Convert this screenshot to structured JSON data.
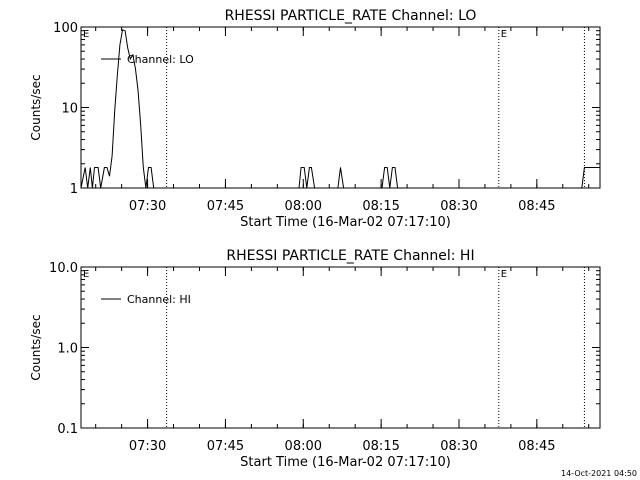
{
  "chart_data": [
    {
      "type": "line",
      "title": "RHESSI PARTICLE_RATE Channel: LO",
      "xlabel": "Start Time (16-Mar-02 07:17:10)",
      "ylabel": "Counts/sec",
      "yscale": "log",
      "ylim": [
        1,
        100
      ],
      "y_tick_labels": [
        "1",
        "10",
        "100"
      ],
      "x_tick_labels": [
        "07:30",
        "07:45",
        "08:00",
        "08:15",
        "08:30",
        "08:45"
      ],
      "x_unit": "minutes after 07:17:10",
      "xlim": [
        0,
        100
      ],
      "legend": {
        "placement": "top-left",
        "entries": [
          "Channel: LO"
        ]
      },
      "markers": [
        {
          "label": "E",
          "x": 0,
          "style": "edge"
        },
        {
          "label": "",
          "x": 16.5,
          "style": "dotted"
        },
        {
          "label": "E",
          "x": 80.5,
          "style": "dotted"
        },
        {
          "label": "",
          "x": 97,
          "style": "dotted"
        }
      ],
      "series": [
        {
          "name": "Channel: LO",
          "x": [
            0,
            0.8,
            1.3,
            1.8,
            2.2,
            2.6,
            3.3,
            3.8,
            4.5,
            5,
            5.5,
            6,
            6.5,
            7,
            7.5,
            8,
            8.5,
            9,
            9.5,
            10,
            10.5,
            11,
            11.5,
            12,
            12.5,
            13,
            13.5,
            14,
            14.5,
            15,
            15.5,
            16,
            42,
            42.4,
            43,
            43.5,
            44,
            44.4,
            45,
            49.5,
            50,
            50.6,
            51.5,
            58,
            58.5,
            59,
            59.5,
            60,
            60.5,
            61,
            61.5,
            96.5,
            97,
            100
          ],
          "y": [
            1,
            1.8,
            1,
            1.8,
            1,
            1.8,
            1.8,
            1,
            1.8,
            1.8,
            1.4,
            2.5,
            9,
            25,
            60,
            92,
            90,
            55,
            40,
            45,
            30,
            16,
            6,
            1.8,
            1,
            1.8,
            1.8,
            1,
            1,
            1,
            1,
            1,
            1,
            1.8,
            1.8,
            1,
            1.8,
            1.8,
            1,
            1,
            1.8,
            1,
            1,
            1,
            1.8,
            1.8,
            1,
            1.8,
            1.8,
            1,
            1,
            1,
            1.8,
            1.8
          ]
        }
      ]
    },
    {
      "type": "line",
      "title": "RHESSI PARTICLE_RATE Channel: HI",
      "xlabel": "Start Time (16-Mar-02 07:17:10)",
      "ylabel": "Counts/sec",
      "yscale": "log",
      "ylim": [
        0.1,
        10
      ],
      "y_tick_labels": [
        "0.1",
        "1.0",
        "10.0"
      ],
      "x_tick_labels": [
        "07:30",
        "07:45",
        "08:00",
        "08:15",
        "08:30",
        "08:45"
      ],
      "x_unit": "minutes after 07:17:10",
      "xlim": [
        0,
        100
      ],
      "legend": {
        "placement": "top-left",
        "entries": [
          "Channel: HI"
        ]
      },
      "markers": [
        {
          "label": "E",
          "x": 0,
          "style": "edge"
        },
        {
          "label": "",
          "x": 16.5,
          "style": "dotted"
        },
        {
          "label": "E",
          "x": 80.5,
          "style": "dotted"
        },
        {
          "label": "",
          "x": 97,
          "style": "dotted"
        }
      ],
      "series": [
        {
          "name": "Channel: HI",
          "x": [],
          "y": []
        }
      ]
    }
  ],
  "x_tick_values": [
    12.83,
    27.83,
    42.83,
    57.83,
    72.83,
    87.83
  ],
  "footer": {
    "timestamp": "14-Oct-2021 04:50"
  }
}
